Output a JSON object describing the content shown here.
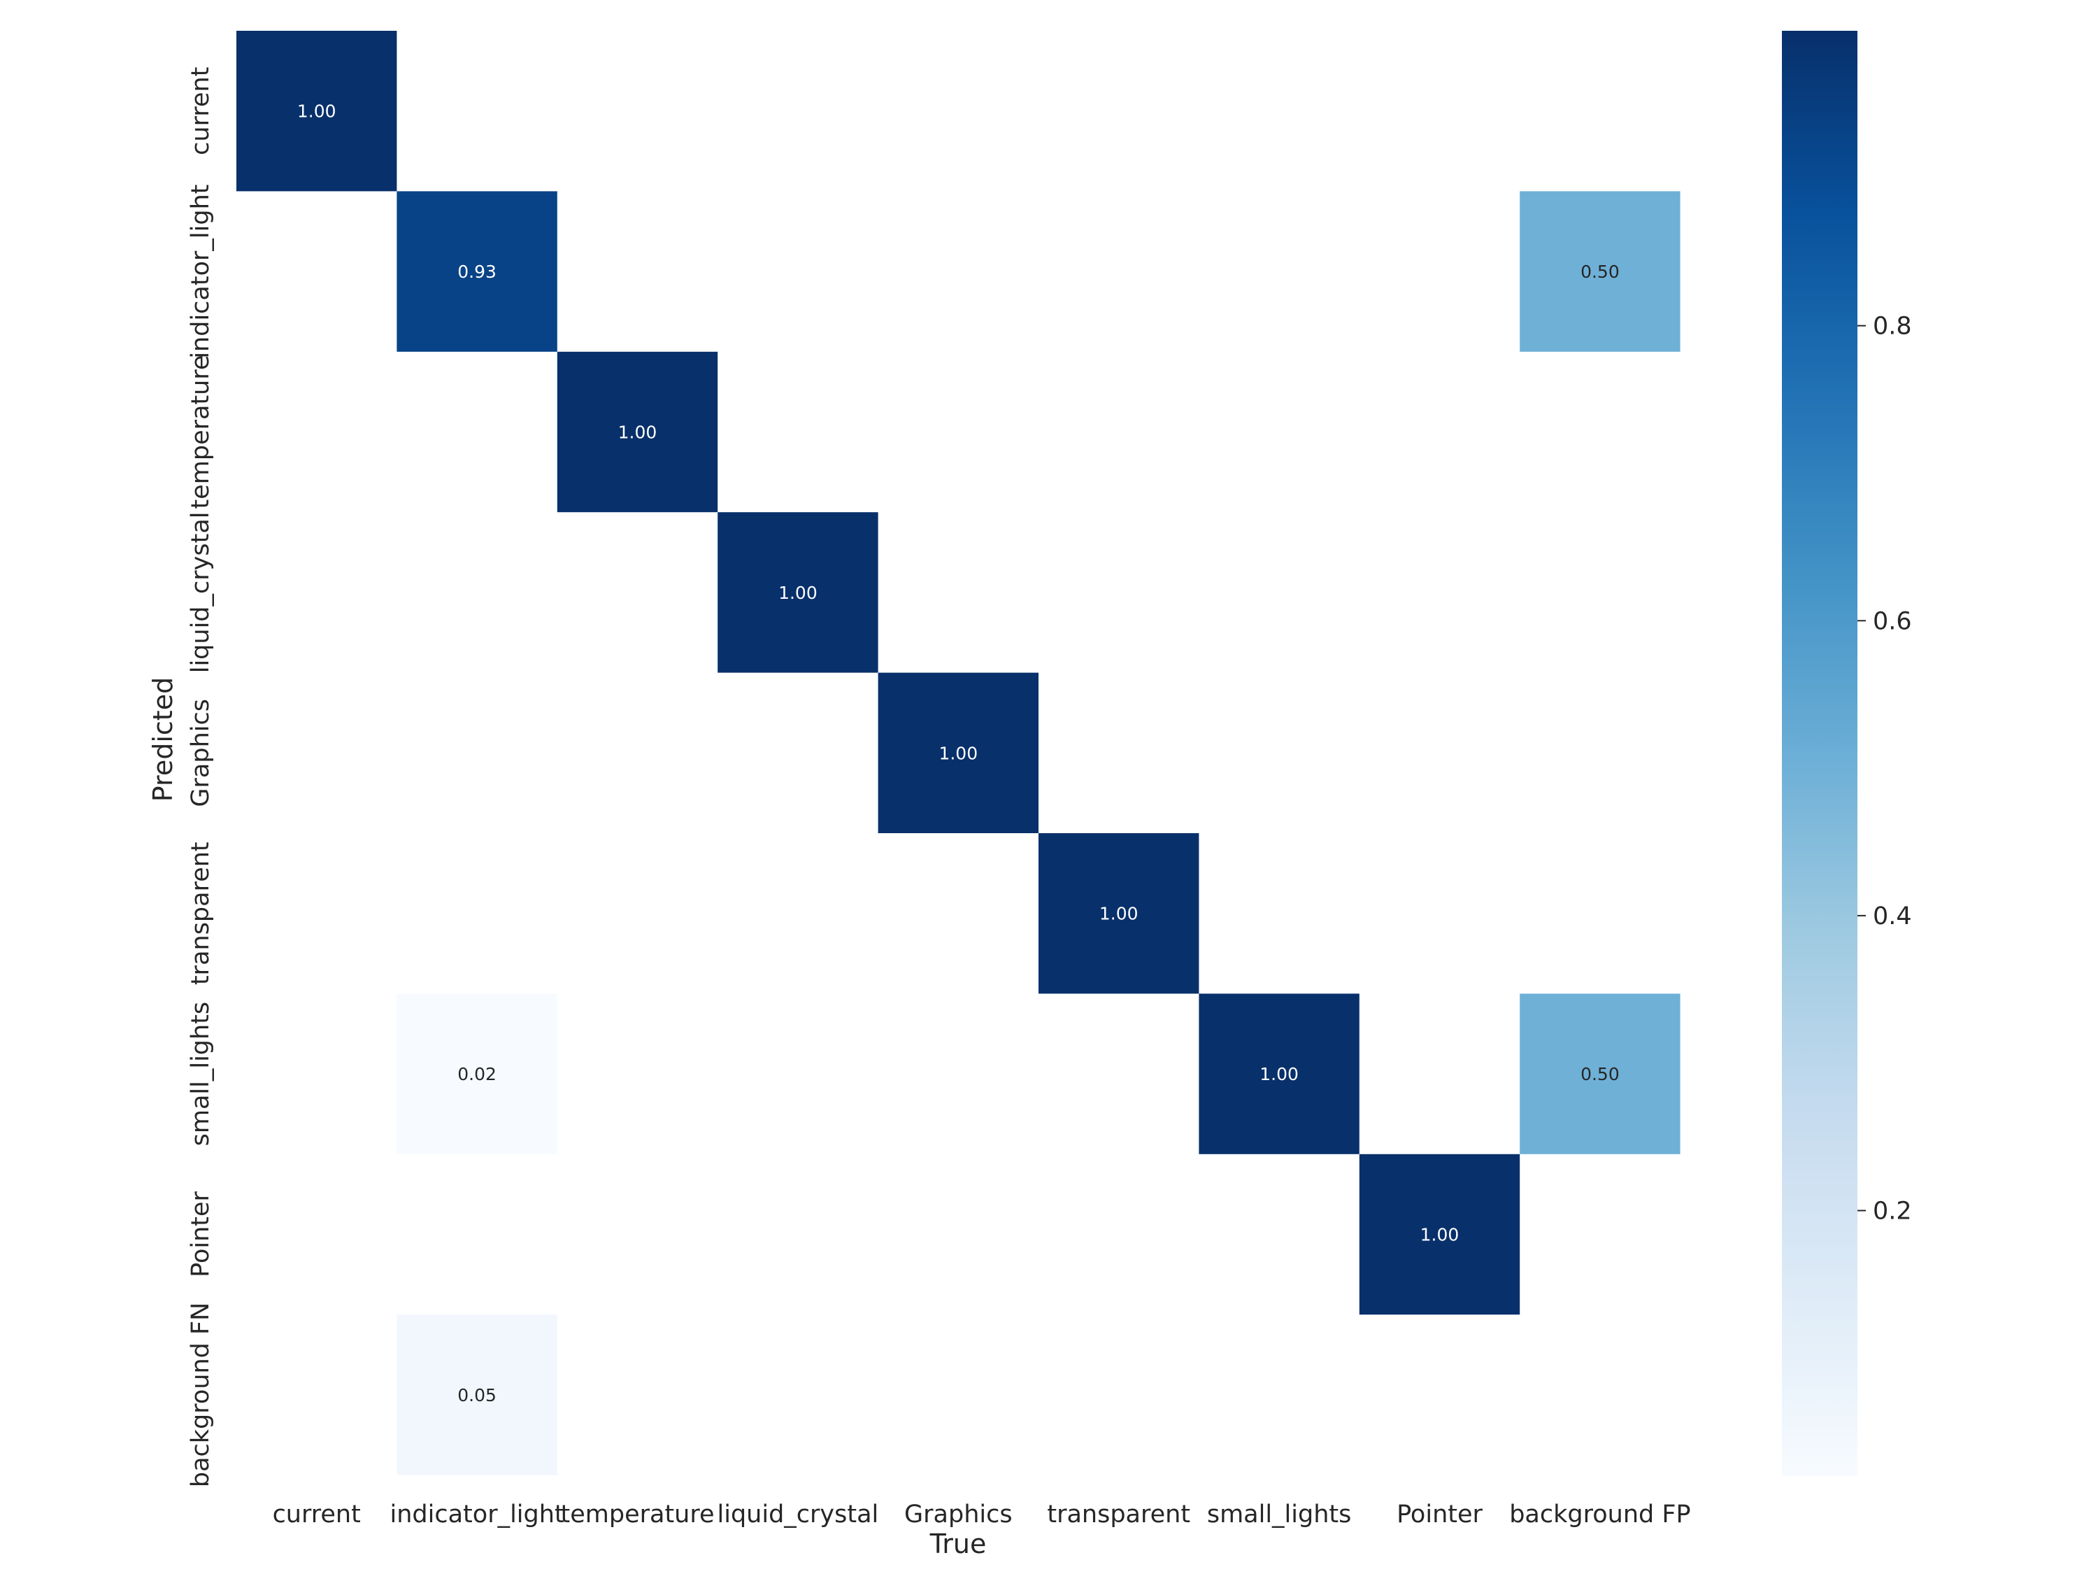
{
  "chart_data": {
    "type": "heatmap",
    "title": "",
    "xlabel": "True",
    "ylabel": "Predicted",
    "x_categories": [
      "current",
      "indicator_light",
      "temperature",
      "liquid_crystal",
      "Graphics",
      "transparent",
      "small_lights",
      "Pointer",
      "background FP"
    ],
    "y_categories": [
      "current",
      "indicator_light",
      "temperature",
      "liquid_crystal",
      "Graphics",
      "transparent",
      "small_lights",
      "Pointer",
      "background FN"
    ],
    "values": [
      [
        1.0,
        null,
        null,
        null,
        null,
        null,
        null,
        null,
        null
      ],
      [
        null,
        0.93,
        null,
        null,
        null,
        null,
        null,
        null,
        0.5
      ],
      [
        null,
        null,
        1.0,
        null,
        null,
        null,
        null,
        null,
        null
      ],
      [
        null,
        null,
        null,
        1.0,
        null,
        null,
        null,
        null,
        null
      ],
      [
        null,
        null,
        null,
        null,
        1.0,
        null,
        null,
        null,
        null
      ],
      [
        null,
        null,
        null,
        null,
        null,
        1.0,
        null,
        null,
        null
      ],
      [
        null,
        0.02,
        null,
        null,
        null,
        null,
        1.0,
        null,
        0.5
      ],
      [
        null,
        null,
        null,
        null,
        null,
        null,
        null,
        1.0,
        null
      ],
      [
        null,
        0.05,
        null,
        null,
        null,
        null,
        null,
        null,
        null
      ]
    ],
    "value_format": "0.00",
    "colormap": "Blues",
    "vmin": 0.02,
    "vmax": 1.0,
    "colorbar": {
      "ticks": [
        0.2,
        0.4,
        0.6,
        0.8
      ],
      "tick_labels": [
        "0.2",
        "0.4",
        "0.6",
        "0.8"
      ],
      "placement": "right"
    },
    "grid": false
  }
}
